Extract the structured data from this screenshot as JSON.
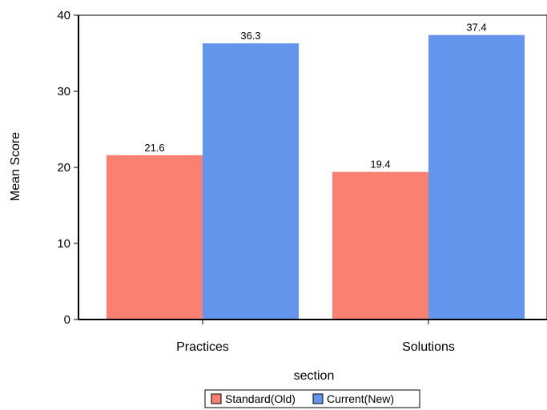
{
  "chart_data": {
    "type": "bar",
    "title": "",
    "xlabel": "section",
    "ylabel": "Mean Score",
    "categories": [
      "Practices",
      "Solutions"
    ],
    "series": [
      {
        "name": "Standard(Old)",
        "color": "#fa8072",
        "values": [
          21.6,
          19.4
        ]
      },
      {
        "name": "Current(New)",
        "color": "#6495ed",
        "values": [
          36.3,
          37.4
        ]
      }
    ],
    "data_labels": [
      [
        "21.6",
        "19.4"
      ],
      [
        "36.3",
        "37.4"
      ]
    ],
    "ylim": [
      0,
      40
    ],
    "yticks": [
      0,
      10,
      20,
      30,
      40
    ],
    "grid": false,
    "legend": "bottom"
  }
}
